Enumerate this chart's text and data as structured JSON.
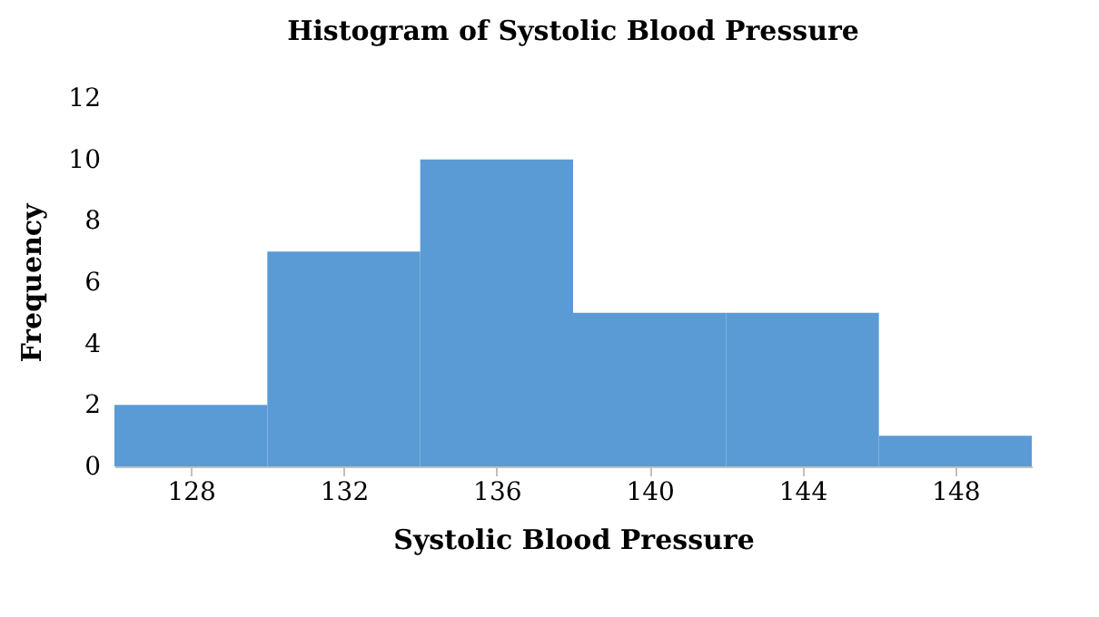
{
  "chart_data": {
    "type": "histogram",
    "title": "Histogram of Systolic Blood Pressure",
    "xlabel": "Systolic Blood Pressure",
    "ylabel": "Frequency",
    "bins": [
      126,
      130,
      134,
      138,
      142,
      146,
      150
    ],
    "values": [
      2,
      7,
      10,
      5,
      5,
      1
    ],
    "color": "#5b9bd5",
    "xlim": [
      126,
      150
    ],
    "xticks": [
      128,
      132,
      136,
      140,
      144,
      148
    ],
    "ylim": [
      0,
      12
    ],
    "yticks": [
      0,
      2,
      4,
      6,
      8,
      10,
      12
    ],
    "grid": false
  }
}
